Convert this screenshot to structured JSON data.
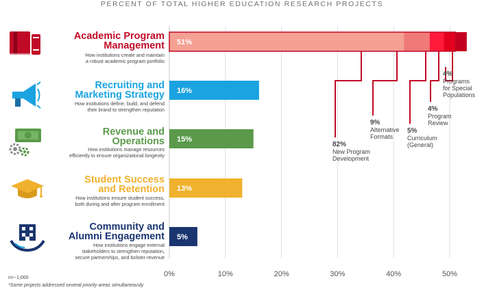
{
  "chart_title": "PERCENT OF TOTAL HIGHER EDUCATION RESEARCH PROJECTS",
  "categories": [
    {
      "title_line1": "Academic Program",
      "title_line2": "Management",
      "desc_line1": "How institutions create and maintain",
      "desc_line2": "a robust academic program portfolio",
      "value_label": "51%",
      "color": "#c00a27",
      "icon": "books-icon"
    },
    {
      "title_line1": "Recruiting and",
      "title_line2": "Marketing Strategy",
      "desc_line1": "How institutions define, build, and defend",
      "desc_line2": "their brand to strengthen reputation",
      "value_label": "16%",
      "color": "#1aa3e0",
      "icon": "megaphone-icon"
    },
    {
      "title_line1": "Revenue and",
      "title_line2": "Operations",
      "desc_line1": "How institutions manage resources",
      "desc_line2": "efficiently to ensure organizational longevity",
      "value_label": "15%",
      "color": "#5a9a4a",
      "icon": "money-gears-icon"
    },
    {
      "title_line1": "Student Success",
      "title_line2": "and Retention",
      "desc_line1": "How institutions ensure student success,",
      "desc_line2": "both during and after program enrollment",
      "value_label": "13%",
      "color": "#f0b12e",
      "icon": "graduation-cap-icon"
    },
    {
      "title_line1": "Community and",
      "title_line2": "Alumni Engagement",
      "desc_line1": "How institutions engage external",
      "desc_line2": "stakeholders to strengthen reputation,",
      "desc_line3": "secure partnerships, and bolster revenue",
      "value_label": "5%",
      "color": "#1a3570",
      "icon": "building-hands-icon"
    }
  ],
  "breakdown": [
    {
      "pct": "82%",
      "label_line1": "New Program",
      "label_line2": "Development",
      "color": "#f4a093"
    },
    {
      "pct": "9%",
      "label_line1": "Alternative",
      "label_line2": "Formats",
      "color": "#f07a78"
    },
    {
      "pct": "5%",
      "label_line1": "Curriculum",
      "label_line2": "(General)",
      "color": "#ff1b3c"
    },
    {
      "pct": "4%",
      "label_line1": "Program",
      "label_line2": "Review",
      "color": "#e3001f"
    },
    {
      "pct": "4%",
      "label_line1": "Programs",
      "label_line2": "for Special",
      "label_line3": "Populations",
      "color": "#c40020"
    }
  ],
  "footnotes": {
    "n": "n=~1,000",
    "note": "*Some projects addressed several priority areas simultaneously"
  },
  "chart_data": {
    "type": "bar",
    "orientation": "horizontal",
    "title": "PERCENT OF TOTAL HIGHER EDUCATION RESEARCH PROJECTS",
    "categories": [
      "Academic Program Management",
      "Recruiting and Marketing Strategy",
      "Revenue and Operations",
      "Student Success and Retention",
      "Community and Alumni Engagement"
    ],
    "values": [
      51,
      16,
      15,
      13,
      5
    ],
    "xlim": [
      0,
      50
    ],
    "xticks": [
      "0%",
      "10%",
      "20%",
      "30%",
      "40%",
      "50%"
    ],
    "grid": true,
    "stacked_breakdown": {
      "category": "Academic Program Management",
      "segments": [
        {
          "name": "New Program Development",
          "share_of_category": 82
        },
        {
          "name": "Alternative Formats",
          "share_of_category": 9
        },
        {
          "name": "Curriculum (General)",
          "share_of_category": 5
        },
        {
          "name": "Program Review",
          "share_of_category": 4
        },
        {
          "name": "Programs for Special Populations",
          "share_of_category": 4
        }
      ]
    }
  }
}
